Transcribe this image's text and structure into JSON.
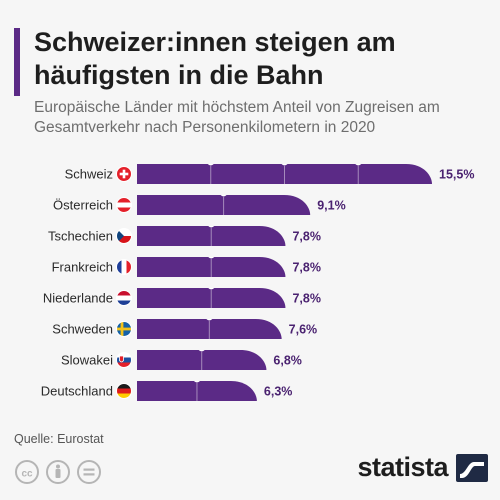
{
  "title": "Schweizer:innen steigen am häufigsten in die Bahn",
  "subtitle": "Europäische Länder mit höchstem Anteil von Zugreisen am Gesamtverkehr nach Personenkilometern in 2020",
  "source": "Quelle: Eurostat",
  "brand": "statista",
  "icons": [
    "creative-commons-icon",
    "attribution-icon",
    "no-derivatives-icon",
    "statista-logo-icon"
  ],
  "colors": {
    "accent": "#5b2a86",
    "bar": "#5b2a86",
    "value_text": "#4a2270"
  },
  "chart_data": {
    "type": "bar",
    "orientation": "horizontal",
    "title": "Schweizer:innen steigen am häufigsten in die Bahn",
    "subtitle": "Europäische Länder mit höchstem Anteil von Zugreisen am Gesamtverkehr nach Personenkilometern in 2020",
    "xlabel": "",
    "ylabel": "",
    "unit": "%",
    "xlim": [
      0,
      15.5
    ],
    "grid": false,
    "legend": "none",
    "categories": [
      "Schweiz",
      "Österreich",
      "Tschechien",
      "Frankreich",
      "Niederlande",
      "Schweden",
      "Slowakei",
      "Deutschland"
    ],
    "values": [
      15.5,
      9.1,
      7.8,
      7.8,
      7.8,
      7.6,
      6.8,
      6.3
    ],
    "labels": [
      "15,5%",
      "9,1%",
      "7,8%",
      "7,8%",
      "7,8%",
      "7,6%",
      "6,8%",
      "6,3%"
    ],
    "flags": [
      "ch",
      "at",
      "cz",
      "fr",
      "nl",
      "se",
      "sk",
      "de"
    ]
  }
}
